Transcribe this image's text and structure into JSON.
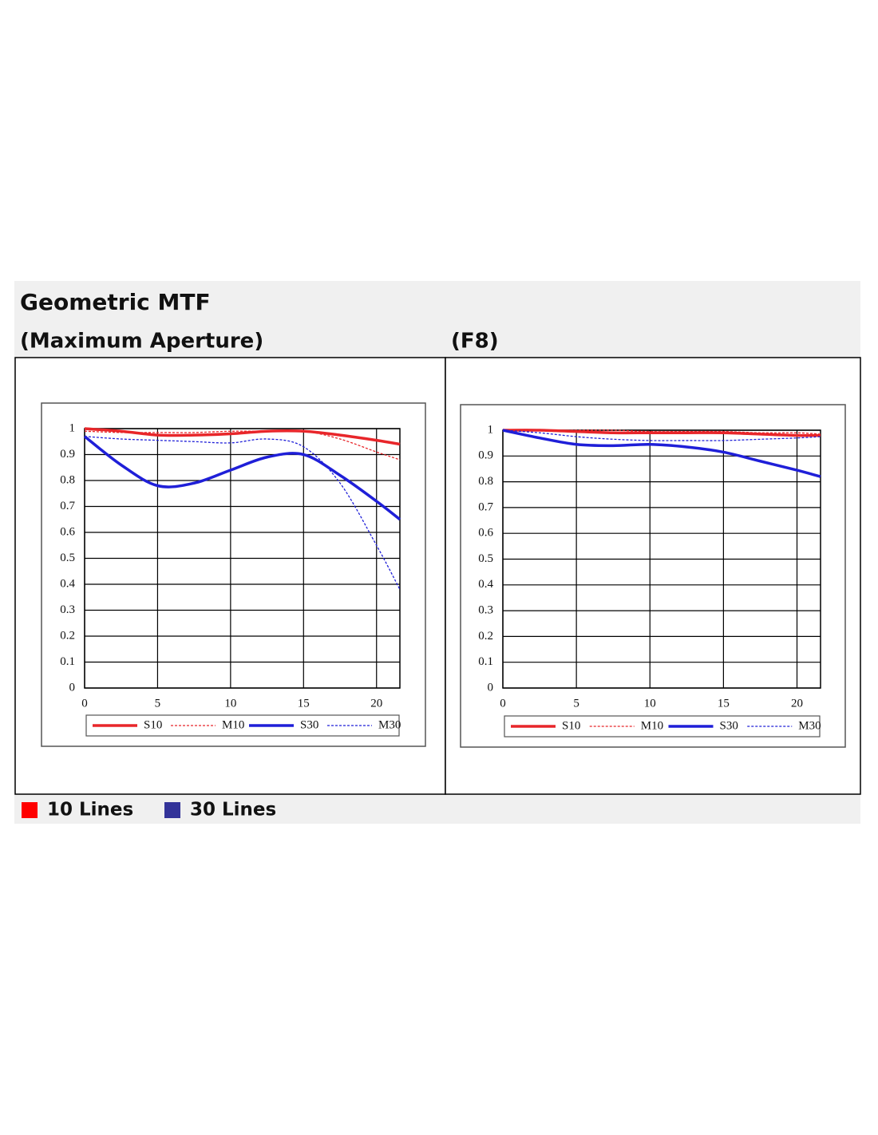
{
  "page": {
    "title": "Geometric MTF",
    "legend": [
      {
        "label": "10 Lines",
        "color": "#ff0000"
      },
      {
        "label": "30  Lines",
        "color": "#333399"
      }
    ]
  },
  "chart_data": [
    {
      "type": "line",
      "title": "(Maximum Aperture)",
      "x": [
        0,
        2.5,
        5,
        7.5,
        10,
        12.5,
        15,
        17.5,
        20,
        21.6
      ],
      "xlim": [
        0,
        21.6
      ],
      "xticks": [
        0,
        5,
        10,
        15,
        20
      ],
      "ylim": [
        0,
        1
      ],
      "yticks": [
        0,
        0.1,
        0.2,
        0.3,
        0.4,
        0.5,
        0.6,
        0.7,
        0.8,
        0.9,
        1
      ],
      "grid": true,
      "series": [
        {
          "name": "S10",
          "color": "#e8262a",
          "style": "solid",
          "values": [
            1,
            0.99,
            0.975,
            0.975,
            0.98,
            0.99,
            0.99,
            0.975,
            0.955,
            0.94
          ]
        },
        {
          "name": "M10",
          "color": "#e8262a",
          "style": "dotted",
          "values": [
            0.99,
            0.985,
            0.985,
            0.985,
            0.99,
            0.99,
            0.99,
            0.96,
            0.91,
            0.88
          ]
        },
        {
          "name": "S30",
          "color": "#1f1fd8",
          "style": "solid",
          "values": [
            0.97,
            0.86,
            0.78,
            0.79,
            0.84,
            0.89,
            0.9,
            0.82,
            0.72,
            0.65
          ]
        },
        {
          "name": "M30",
          "color": "#1f1fd8",
          "style": "dotted",
          "values": [
            0.97,
            0.96,
            0.955,
            0.95,
            0.945,
            0.96,
            0.93,
            0.79,
            0.55,
            0.38
          ]
        }
      ]
    },
    {
      "type": "line",
      "title": "(F8)",
      "x": [
        0,
        2.5,
        5,
        7.5,
        10,
        12.5,
        15,
        17.5,
        20,
        21.6
      ],
      "xlim": [
        0,
        21.6
      ],
      "xticks": [
        0,
        5,
        10,
        15,
        20
      ],
      "ylim": [
        0,
        1
      ],
      "yticks": [
        0,
        0.1,
        0.2,
        0.3,
        0.4,
        0.5,
        0.6,
        0.7,
        0.8,
        0.9,
        1
      ],
      "grid": true,
      "series": [
        {
          "name": "S10",
          "color": "#e8262a",
          "style": "solid",
          "values": [
            1,
            1,
            0.995,
            0.99,
            0.99,
            0.99,
            0.99,
            0.985,
            0.98,
            0.98
          ]
        },
        {
          "name": "M10",
          "color": "#e8262a",
          "style": "dotted",
          "values": [
            1,
            1,
            1,
            1,
            0.995,
            0.995,
            0.995,
            0.99,
            0.99,
            0.985
          ]
        },
        {
          "name": "S30",
          "color": "#1f1fd8",
          "style": "solid",
          "values": [
            1,
            0.97,
            0.945,
            0.94,
            0.945,
            0.935,
            0.915,
            0.88,
            0.845,
            0.82
          ]
        },
        {
          "name": "M30",
          "color": "#1f1fd8",
          "style": "dotted",
          "values": [
            1,
            0.99,
            0.975,
            0.965,
            0.96,
            0.96,
            0.96,
            0.965,
            0.97,
            0.975
          ]
        }
      ]
    }
  ]
}
